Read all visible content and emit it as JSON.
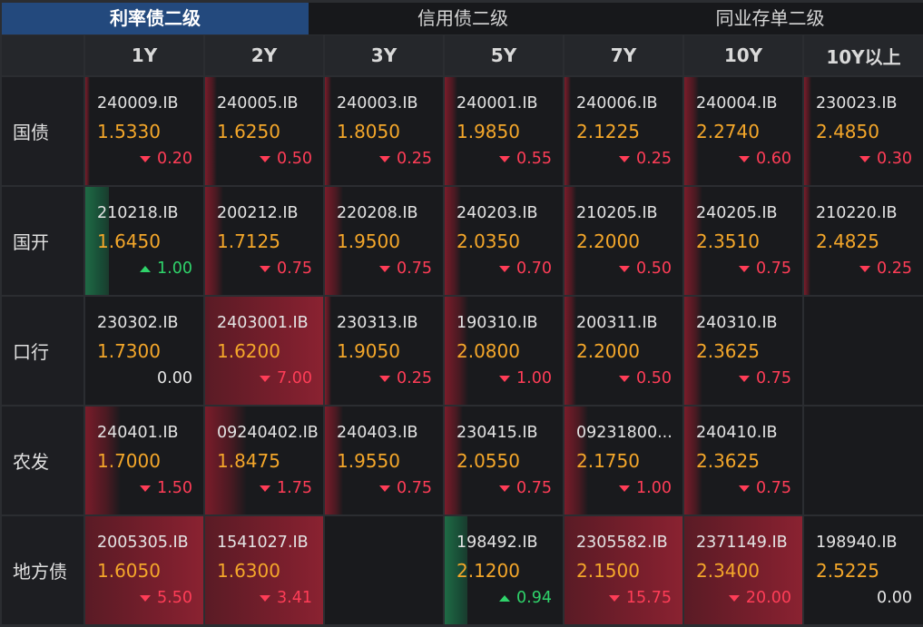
{
  "tabs": [
    {
      "label": "利率债二级",
      "active": true
    },
    {
      "label": "信用债二级",
      "active": false
    },
    {
      "label": "同业存单二级",
      "active": false
    }
  ],
  "columns": [
    "1Y",
    "2Y",
    "3Y",
    "5Y",
    "7Y",
    "10Y",
    "10Y以上"
  ],
  "rows": [
    {
      "label": "国债",
      "cells": [
        {
          "code": "240009.IB",
          "yield": "1.5330",
          "change": "0.20",
          "dir": "down",
          "bar": 0.04
        },
        {
          "code": "240005.IB",
          "yield": "1.6250",
          "change": "0.50",
          "dir": "down",
          "bar": 0.1
        },
        {
          "code": "240003.IB",
          "yield": "1.8050",
          "change": "0.25",
          "dir": "down",
          "bar": 0.05
        },
        {
          "code": "240001.IB",
          "yield": "1.9850",
          "change": "0.55",
          "dir": "down",
          "bar": 0.11
        },
        {
          "code": "240006.IB",
          "yield": "2.1225",
          "change": "0.25",
          "dir": "down",
          "bar": 0.05
        },
        {
          "code": "240004.IB",
          "yield": "2.2740",
          "change": "0.60",
          "dir": "down",
          "bar": 0.12
        },
        {
          "code": "230023.IB",
          "yield": "2.4850",
          "change": "0.30",
          "dir": "down",
          "bar": 0.06
        }
      ]
    },
    {
      "label": "国开",
      "cells": [
        {
          "code": "210218.IB",
          "yield": "1.6450",
          "change": "1.00",
          "dir": "up",
          "bar": 0.2
        },
        {
          "code": "200212.IB",
          "yield": "1.7125",
          "change": "0.75",
          "dir": "down",
          "bar": 0.15
        },
        {
          "code": "220208.IB",
          "yield": "1.9500",
          "change": "0.75",
          "dir": "down",
          "bar": 0.15
        },
        {
          "code": "240203.IB",
          "yield": "2.0350",
          "change": "0.70",
          "dir": "down",
          "bar": 0.14
        },
        {
          "code": "210205.IB",
          "yield": "2.2000",
          "change": "0.50",
          "dir": "down",
          "bar": 0.1
        },
        {
          "code": "240205.IB",
          "yield": "2.3510",
          "change": "0.75",
          "dir": "down",
          "bar": 0.15
        },
        {
          "code": "210220.IB",
          "yield": "2.4825",
          "change": "0.25",
          "dir": "down",
          "bar": 0.05
        }
      ]
    },
    {
      "label": "口行",
      "cells": [
        {
          "code": "230302.IB",
          "yield": "1.7300",
          "change": "0.00",
          "dir": "flat",
          "bar": 0
        },
        {
          "code": "2403001.IB",
          "yield": "1.6200",
          "change": "7.00",
          "dir": "down",
          "bar": 1.0
        },
        {
          "code": "230313.IB",
          "yield": "1.9050",
          "change": "0.25",
          "dir": "down",
          "bar": 0.05
        },
        {
          "code": "190310.IB",
          "yield": "2.0800",
          "change": "1.00",
          "dir": "down",
          "bar": 0.2
        },
        {
          "code": "200311.IB",
          "yield": "2.2000",
          "change": "0.50",
          "dir": "down",
          "bar": 0.1
        },
        {
          "code": "240310.IB",
          "yield": "2.3625",
          "change": "0.75",
          "dir": "down",
          "bar": 0.15
        },
        null
      ]
    },
    {
      "label": "农发",
      "cells": [
        {
          "code": "240401.IB",
          "yield": "1.7000",
          "change": "1.50",
          "dir": "down",
          "bar": 0.3
        },
        {
          "code": "09240402.IB",
          "yield": "1.8475",
          "change": "1.75",
          "dir": "down",
          "bar": 0.35
        },
        {
          "code": "240403.IB",
          "yield": "1.9550",
          "change": "0.75",
          "dir": "down",
          "bar": 0.15
        },
        {
          "code": "230415.IB",
          "yield": "2.0550",
          "change": "0.75",
          "dir": "down",
          "bar": 0.15
        },
        {
          "code": "09231800...",
          "yield": "2.1750",
          "change": "1.00",
          "dir": "down",
          "bar": 0.2
        },
        {
          "code": "240410.IB",
          "yield": "2.3625",
          "change": "0.75",
          "dir": "down",
          "bar": 0.15
        },
        null
      ]
    },
    {
      "label": "地方债",
      "cells": [
        {
          "code": "2005305.IB",
          "yield": "1.6050",
          "change": "5.50",
          "dir": "down",
          "bar": 1.0
        },
        {
          "code": "1541027.IB",
          "yield": "1.6300",
          "change": "3.41",
          "dir": "down",
          "bar": 1.0
        },
        null,
        {
          "code": "198492.IB",
          "yield": "2.1200",
          "change": "0.94",
          "dir": "up",
          "bar": 0.19
        },
        {
          "code": "2305582.IB",
          "yield": "2.1500",
          "change": "15.75",
          "dir": "down",
          "bar": 1.0
        },
        {
          "code": "2371149.IB",
          "yield": "2.3400",
          "change": "20.00",
          "dir": "down",
          "bar": 1.0
        },
        {
          "code": "198940.IB",
          "yield": "2.5225",
          "change": "0.00",
          "dir": "flat",
          "bar": 0
        }
      ]
    }
  ]
}
